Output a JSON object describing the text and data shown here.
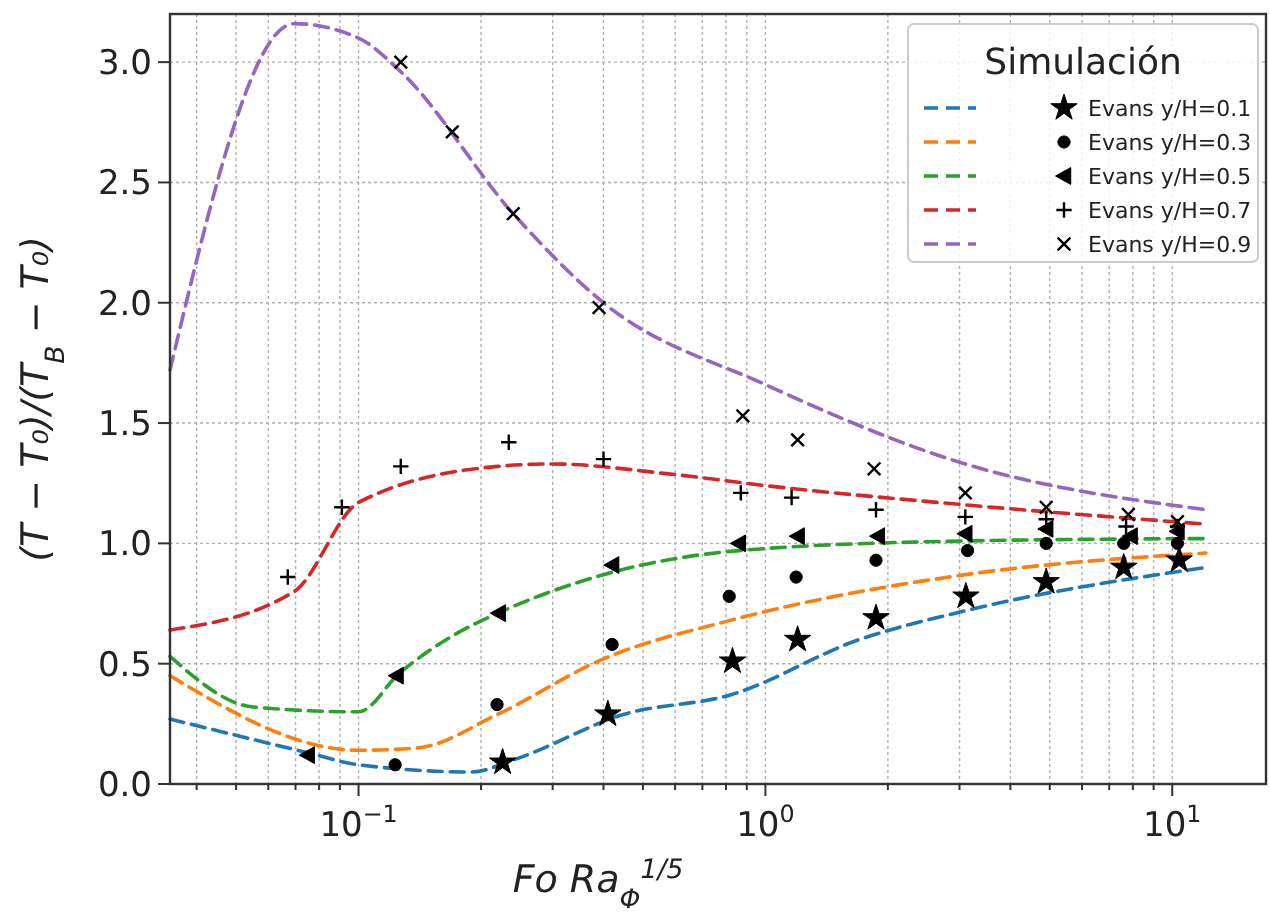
{
  "chart_data": {
    "type": "line",
    "xlabel": "Fo Ra$_{Φ}$$^{1/5}$",
    "ylabel": "(T − T₀)/(T$_{B}$ − T₀)",
    "legend_title": "Simulación",
    "log": "x",
    "grid": true,
    "legend": "top right",
    "line_style": "dashed",
    "xlim": [
      0.0344,
      17
    ],
    "ylim": [
      0,
      3.2
    ],
    "xticks": [
      {
        "value": 0.04,
        "label": null
      },
      {
        "value": 0.05,
        "label": null
      },
      {
        "value": 0.06,
        "label": null
      },
      {
        "value": 0.07,
        "label": null
      },
      {
        "value": 0.08,
        "label": null
      },
      {
        "value": 0.09,
        "label": null
      },
      {
        "value": 0.1,
        "label": "10$^{−1}$"
      },
      {
        "value": 0.2,
        "label": null
      },
      {
        "value": 0.3,
        "label": null
      },
      {
        "value": 0.4,
        "label": null
      },
      {
        "value": 0.5,
        "label": null
      },
      {
        "value": 0.6,
        "label": null
      },
      {
        "value": 0.7,
        "label": null
      },
      {
        "value": 0.8,
        "label": null
      },
      {
        "value": 0.9,
        "label": null
      },
      {
        "value": 1,
        "label": "10$^{0}$"
      },
      {
        "value": 2,
        "label": null
      },
      {
        "value": 3,
        "label": null
      },
      {
        "value": 4,
        "label": null
      },
      {
        "value": 5,
        "label": null
      },
      {
        "value": 6,
        "label": null
      },
      {
        "value": 7,
        "label": null
      },
      {
        "value": 8,
        "label": null
      },
      {
        "value": 9,
        "label": null
      },
      {
        "value": 10,
        "label": "10$^{1}$"
      }
    ],
    "yticks": [
      {
        "value": 0,
        "label": "0.0"
      },
      {
        "value": 0.5,
        "label": "0.5"
      },
      {
        "value": 1,
        "label": "1.0"
      },
      {
        "value": 1.5,
        "label": "1.5"
      },
      {
        "value": 2,
        "label": "2.0"
      },
      {
        "value": 2.5,
        "label": "2.5"
      },
      {
        "value": 3,
        "label": "3.0"
      }
    ],
    "series": [
      {
        "color": "#1f77b4",
        "x": [
          0.0344,
          0.075,
          0.1,
          0.19,
          0.24,
          0.45,
          0.82,
          1.7,
          3.1,
          12.1
        ],
        "values": [
          0.27,
          0.13,
          0.08,
          0.05,
          0.1,
          0.29,
          0.37,
          0.6,
          0.72,
          0.9
        ]
      },
      {
        "color": "#ff7f0e",
        "x": [
          0.0344,
          0.1,
          0.14,
          0.22,
          0.4,
          0.82,
          3.1,
          12.1
        ],
        "values": [
          0.45,
          0.14,
          0.15,
          0.29,
          0.52,
          0.68,
          0.87,
          0.96
        ]
      },
      {
        "color": "#2ca02c",
        "x": [
          0.0344,
          0.055,
          0.1,
          0.126,
          0.176,
          0.22,
          0.4,
          0.86,
          3.1,
          12.1
        ],
        "values": [
          0.53,
          0.32,
          0.3,
          0.46,
          0.63,
          0.71,
          0.87,
          0.97,
          1.01,
          1.02
        ]
      },
      {
        "color": "#d62728",
        "x": [
          0.0344,
          0.0695,
          0.1,
          0.22,
          0.3,
          0.57,
          1,
          3.1,
          12.1
        ],
        "values": [
          0.64,
          0.8,
          1.17,
          1.32,
          1.33,
          1.29,
          1.24,
          1.16,
          1.08
        ]
      },
      {
        "color": "#9467bd",
        "x": [
          0.0344,
          0.0695,
          0.1,
          0.127,
          0.24,
          0.4,
          1,
          3.1,
          12.1
        ],
        "values": [
          1.72,
          3.16,
          3.1,
          2.96,
          2.37,
          2.0,
          1.66,
          1.33,
          1.14
        ]
      },
      {
        "type": "scatter",
        "name": "Evans y/H=0.1",
        "color": "#000000",
        "marker": "star",
        "x": [
          0.226,
          0.41,
          0.83,
          1.2,
          1.87,
          3.11,
          4.9,
          7.6,
          10.4
        ],
        "values": [
          0.09,
          0.29,
          0.51,
          0.6,
          0.69,
          0.78,
          0.84,
          0.9,
          0.93
        ]
      },
      {
        "type": "scatter",
        "name": "Evans y/H=0.3",
        "color": "#000000",
        "marker": "circle",
        "x": [
          0.123,
          0.219,
          0.42,
          0.815,
          1.19,
          1.87,
          3.14,
          4.9,
          7.6,
          10.3
        ],
        "values": [
          0.08,
          0.33,
          0.58,
          0.78,
          0.86,
          0.93,
          0.97,
          1.0,
          1.0,
          1.0
        ]
      },
      {
        "type": "scatter",
        "name": "Evans y/H=0.5",
        "color": "#000000",
        "marker": "triangle-left",
        "x": [
          0.075,
          0.124,
          0.221,
          0.42,
          0.86,
          1.2,
          1.89,
          3.1,
          4.9,
          7.9,
          10.3
        ],
        "values": [
          0.12,
          0.45,
          0.71,
          0.91,
          1.0,
          1.03,
          1.03,
          1.04,
          1.06,
          1.03,
          1.05
        ]
      },
      {
        "type": "scatter",
        "name": "Evans y/H=0.7",
        "color": "#000000",
        "marker": "plus",
        "x": [
          0.067,
          0.091,
          0.127,
          0.234,
          0.4,
          0.87,
          1.16,
          1.87,
          3.1,
          4.9,
          7.7,
          10.3
        ],
        "values": [
          0.86,
          1.15,
          1.32,
          1.42,
          1.35,
          1.21,
          1.19,
          1.14,
          1.11,
          1.1,
          1.07,
          1.07
        ]
      },
      {
        "type": "scatter",
        "name": "Evans y/H=0.9",
        "color": "#000000",
        "marker": "cross",
        "x": [
          0.127,
          0.17,
          0.24,
          0.39,
          0.88,
          1.2,
          1.85,
          3.1,
          4.9,
          7.8,
          10.3
        ],
        "values": [
          3.0,
          2.71,
          2.37,
          1.98,
          1.53,
          1.43,
          1.31,
          1.21,
          1.15,
          1.12,
          1.09
        ]
      }
    ]
  }
}
